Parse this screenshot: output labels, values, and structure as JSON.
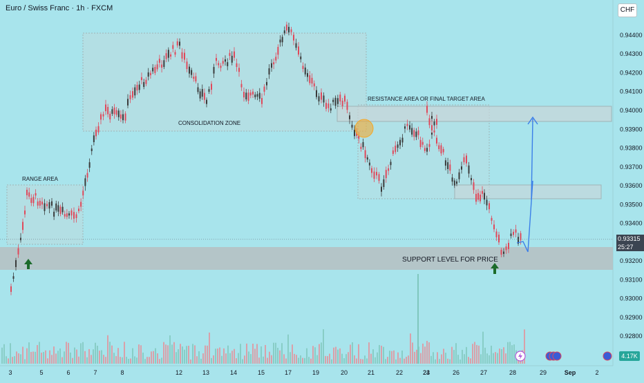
{
  "header": {
    "symbol_title": "Euro / Swiss Franc · 1h · FXCM",
    "currency_button": "CHF"
  },
  "price_scale": {
    "labels": [
      "0.94400",
      "0.94300",
      "0.94200",
      "0.94100",
      "0.94000",
      "0.93900",
      "0.93800",
      "0.93700",
      "0.93600",
      "0.93500",
      "0.93400",
      "0.93200",
      "0.93100",
      "0.93000",
      "0.92900",
      "0.92800"
    ],
    "last_price": "0.93315",
    "countdown": "25:27",
    "volume_badge": "4.17K"
  },
  "time_axis": {
    "labels": [
      "3",
      "5",
      "6",
      "7",
      "8",
      "12",
      "13",
      "14",
      "15",
      "17",
      "19",
      "20",
      "21",
      "22",
      "23",
      "24",
      "26",
      "27",
      "28",
      "29",
      "Sep",
      "2"
    ]
  },
  "annotations": {
    "range_area": "RANGE AREA",
    "consolidation_zone": "CONSOLIDATION ZONE",
    "resistance_area": "RESISTANCE AREA OR FINAL TARGET AREA",
    "support_level": "SUPPORT LEVEL FOR PRICE"
  },
  "colors": {
    "background": "#a8e4ec",
    "up_candle": "#3a3a3a",
    "down_candle": "#e0485a",
    "zone_fill": "#c9d6d8",
    "support_fill": "#b6c0c2",
    "arrow_green": "#1b6b2a",
    "projection_blue": "#3a7ee8",
    "highlight_orange": "#f5a623"
  },
  "chart_data": {
    "type": "candlestick",
    "instrument": "Euro / Swiss Franc",
    "timeframe": "1h",
    "y_range": [
      0.9275,
      0.945
    ],
    "price_path": [
      {
        "x": "3",
        "y": 0.9305
      },
      {
        "x": "3",
        "y": 0.933
      },
      {
        "x": "4",
        "y": 0.9355
      },
      {
        "x": "5",
        "y": 0.9352
      },
      {
        "x": "5",
        "y": 0.9348
      },
      {
        "x": "6",
        "y": 0.9343
      },
      {
        "x": "6",
        "y": 0.9345
      },
      {
        "x": "7",
        "y": 0.939
      },
      {
        "x": "7",
        "y": 0.94
      },
      {
        "x": "8",
        "y": 0.9395
      },
      {
        "x": "8",
        "y": 0.941
      },
      {
        "x": "12",
        "y": 0.9435
      },
      {
        "x": "12",
        "y": 0.942
      },
      {
        "x": "13",
        "y": 0.9405
      },
      {
        "x": "13",
        "y": 0.9425
      },
      {
        "x": "14",
        "y": 0.9428
      },
      {
        "x": "14",
        "y": 0.941
      },
      {
        "x": "15",
        "y": 0.9405
      },
      {
        "x": "15",
        "y": 0.9425
      },
      {
        "x": "17",
        "y": 0.9445
      },
      {
        "x": "17",
        "y": 0.943
      },
      {
        "x": "19",
        "y": 0.941
      },
      {
        "x": "19",
        "y": 0.9402
      },
      {
        "x": "20",
        "y": 0.9405
      },
      {
        "x": "20",
        "y": 0.939
      },
      {
        "x": "21",
        "y": 0.937
      },
      {
        "x": "21",
        "y": 0.936
      },
      {
        "x": "22",
        "y": 0.9385
      },
      {
        "x": "22",
        "y": 0.9392
      },
      {
        "x": "23",
        "y": 0.938
      },
      {
        "x": "23",
        "y": 0.9395
      },
      {
        "x": "24",
        "y": 0.94
      },
      {
        "x": "24",
        "y": 0.9385
      },
      {
        "x": "26",
        "y": 0.936
      },
      {
        "x": "26",
        "y": 0.9375
      },
      {
        "x": "26",
        "y": 0.9355
      },
      {
        "x": "27",
        "y": 0.9355
      },
      {
        "x": "27",
        "y": 0.934
      },
      {
        "x": "27",
        "y": 0.9322
      },
      {
        "x": "28",
        "y": 0.9335
      },
      {
        "x": "28",
        "y": 0.9332
      }
    ],
    "zones": [
      {
        "label": "RANGE AREA",
        "y_low": 0.9343,
        "y_high": 0.9358
      },
      {
        "label": "CONSOLIDATION ZONE",
        "y_low": 0.9388,
        "y_high": 0.944
      },
      {
        "label": "RESISTANCE AREA OR FINAL TARGET AREA",
        "y_low": 0.9394,
        "y_high": 0.9401
      },
      {
        "label": "SUPPORT LEVEL FOR PRICE",
        "y_low": 0.9315,
        "y_high": 0.9327
      }
    ],
    "projection": [
      {
        "x": "28",
        "y": 0.933
      },
      {
        "x": "28",
        "y": 0.9325
      },
      {
        "x": "28",
        "y": 0.936
      },
      {
        "x": "28",
        "y": 0.9352
      },
      {
        "x": "28",
        "y": 0.9398
      }
    ],
    "last_price": 0.93315,
    "grid": false,
    "legend": "none"
  }
}
